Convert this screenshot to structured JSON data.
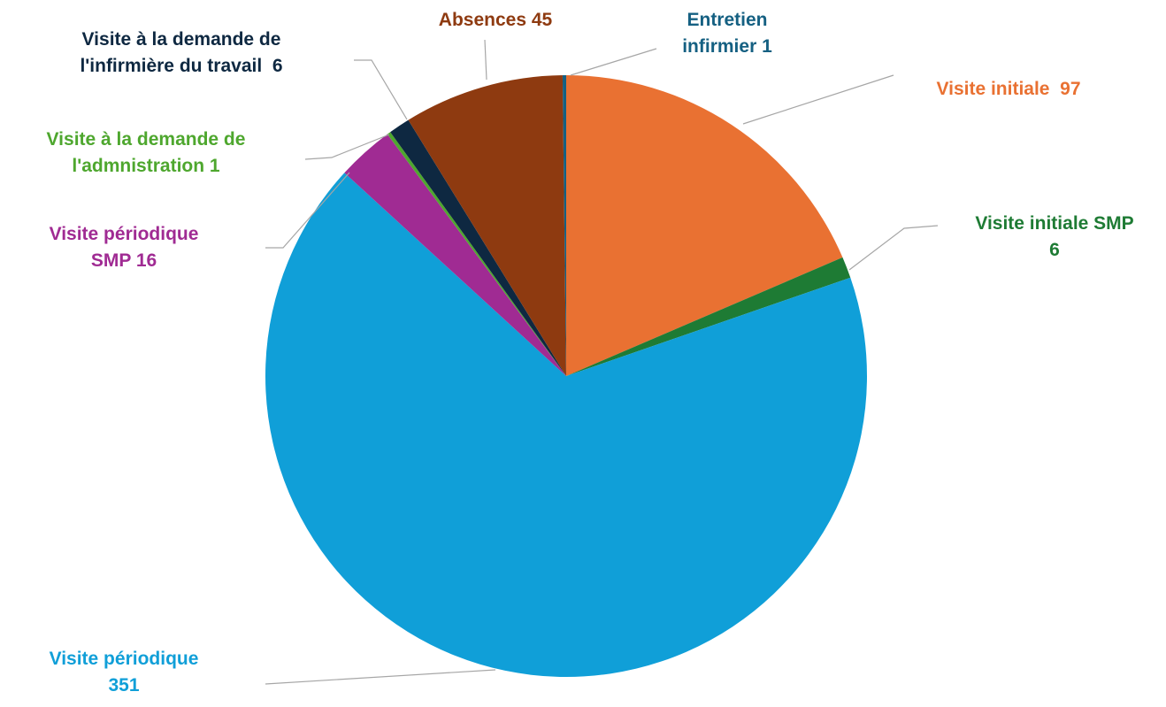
{
  "chart_data": {
    "type": "pie",
    "categories": [
      "Visite initiale",
      "Visite initiale SMP",
      "Visite périodique",
      "Visite périodique SMP",
      "Visite à la demande de l'admnistration",
      "Visite à la demande de l'infirmière du travail",
      "Absences",
      "Entretien infirmier"
    ],
    "values": [
      97,
      6,
      351,
      16,
      1,
      6,
      45,
      1
    ],
    "colors": [
      "#E97132",
      "#1E7B34",
      "#109FD8",
      "#A02B93",
      "#4EA72E",
      "#0E2841",
      "#8E3A10",
      "#156082"
    ]
  }
}
